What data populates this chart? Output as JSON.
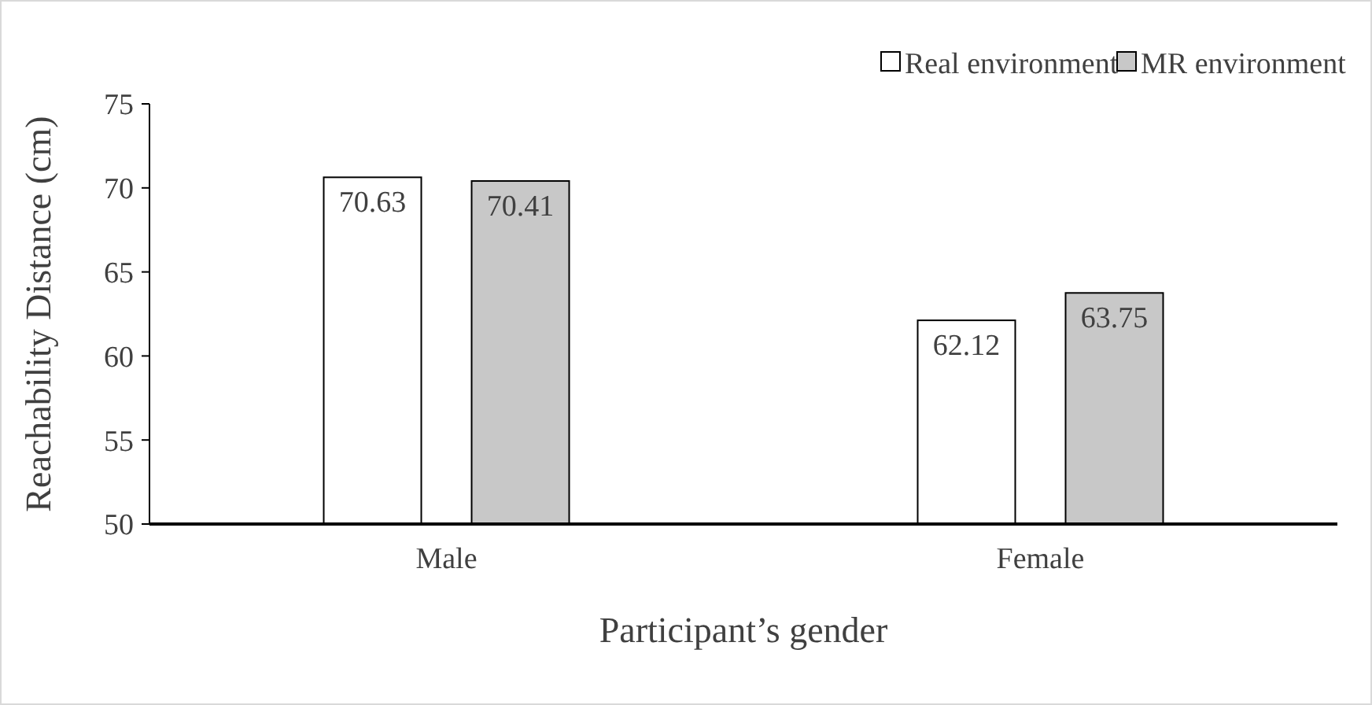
{
  "chart_data": {
    "type": "bar",
    "xlabel": "Participant’s gender",
    "ylabel": "Reachability Distance (cm)",
    "categories": [
      "Male",
      "Female"
    ],
    "series": [
      {
        "name": "Real environment",
        "color": "#ffffff",
        "values": [
          70.63,
          62.12
        ]
      },
      {
        "name": "MR environment",
        "color": "#c8c8c8",
        "values": [
          70.41,
          63.75
        ]
      }
    ],
    "ylim": [
      50,
      75
    ],
    "yticks": [
      50,
      55,
      60,
      65,
      70,
      75
    ],
    "data_labels": true,
    "legend": "top right",
    "grid": false
  }
}
